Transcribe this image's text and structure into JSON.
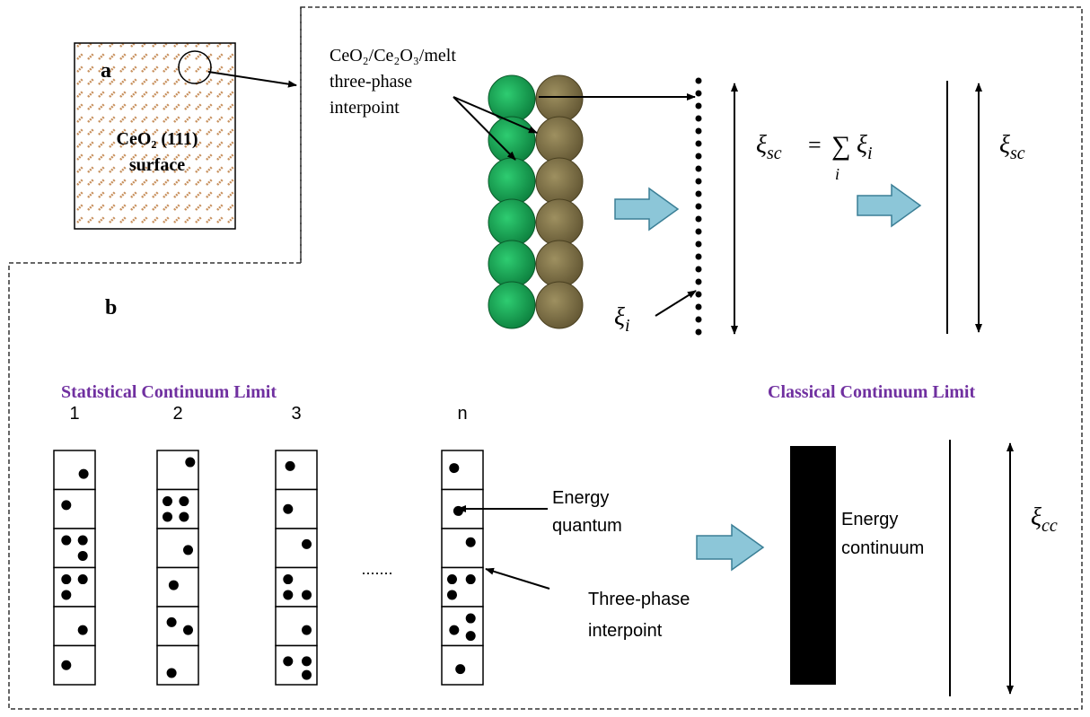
{
  "panel_a": {
    "label": "a",
    "surface_label": [
      "CeO₂ (111)",
      "surface"
    ]
  },
  "phase_label": [
    "CeO₂/Ce₂O₃/melt",
    "three-phase",
    "interpoint"
  ],
  "xi_i": {
    "symbol": "ξ",
    "sub": "i"
  },
  "equation": {
    "lhs": "ξ",
    "lhs_sub": "sc",
    "equals": "=",
    "sum": "∑",
    "sum_index": "i",
    "rhs": "ξ",
    "rhs_sub": "i"
  },
  "xi_sc": {
    "symbol": "ξ",
    "sub": "sc"
  },
  "panel_b": {
    "label": "b",
    "statistical_title": "Statistical Continuum Limit",
    "classical_title": "Classical Continuum Limit",
    "columns": [
      "1",
      "2",
      "3",
      "n"
    ],
    "ellipsis": ".......",
    "energy_quantum": [
      "Energy",
      "quantum"
    ],
    "three_phase": [
      "Three-phase",
      "interpoint"
    ],
    "energy_continuum": [
      "Energy",
      "continuum"
    ],
    "xi_cc": {
      "symbol": "ξ",
      "sub": "cc"
    }
  }
}
